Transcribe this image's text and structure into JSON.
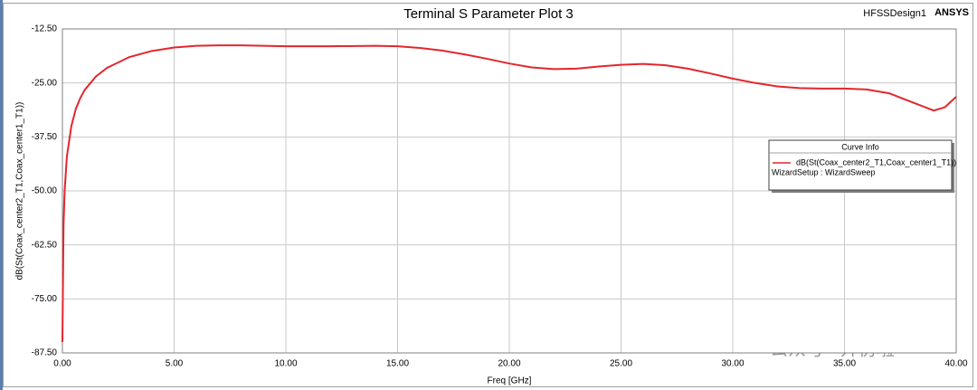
{
  "chart_data": {
    "type": "line",
    "title": "Terminal S Parameter Plot 3",
    "design": "HFSSDesign1",
    "brand": "ANSYS",
    "x_label": "Freq [GHz]",
    "y_label": "dB(St(Coax_center2_T1,Coax_center1_T1))",
    "x": [
      0,
      0.05,
      0.1,
      0.2,
      0.4,
      0.6,
      0.8,
      1,
      1.5,
      2,
      3,
      4,
      5,
      6,
      7,
      8,
      10,
      12,
      14,
      15,
      16,
      17,
      18,
      19,
      20,
      21,
      22,
      23,
      24,
      25,
      26,
      27,
      28,
      29,
      30,
      31,
      32,
      33,
      34,
      35,
      36,
      37,
      38,
      39,
      39.5,
      40
    ],
    "series": [
      {
        "name": "dB(St(Coax_center2_T1,Coax_center1_T1))",
        "color": "#e3262d",
        "values": [
          -85,
          -58,
          -50,
          -42,
          -35,
          -31,
          -28.5,
          -26.6,
          -23.5,
          -21.5,
          -19,
          -17.6,
          -16.8,
          -16.4,
          -16.3,
          -16.3,
          -16.5,
          -16.5,
          -16.4,
          -16.5,
          -16.9,
          -17.5,
          -18.4,
          -19.4,
          -20.5,
          -21.4,
          -21.8,
          -21.7,
          -21.2,
          -20.8,
          -20.6,
          -20.9,
          -21.7,
          -22.8,
          -24,
          -25,
          -25.8,
          -26.2,
          -26.3,
          -26.3,
          -26.5,
          -27.4,
          -29.4,
          -31.4,
          -30.6,
          -28.2
        ]
      }
    ],
    "legend_title": "Curve Info",
    "legend_note": "WizardSetup : WizardSweep",
    "legend_position": "right",
    "xlim": [
      0,
      40
    ],
    "ylim": [
      -87.5,
      -12.5
    ],
    "xticks": [
      {
        "value": 0,
        "label": "0.00"
      },
      {
        "value": 5,
        "label": "5.00"
      },
      {
        "value": 10,
        "label": "10.00"
      },
      {
        "value": 15,
        "label": "15.00"
      },
      {
        "value": 20,
        "label": "20.00"
      },
      {
        "value": 25,
        "label": "25.00"
      },
      {
        "value": 30,
        "label": "30.00"
      },
      {
        "value": 35,
        "label": "35.00"
      },
      {
        "value": 40,
        "label": "40.00"
      }
    ],
    "yticks": [
      {
        "value": -87.5,
        "label": "-87.50"
      },
      {
        "value": -75,
        "label": "-75.00"
      },
      {
        "value": -62.5,
        "label": "-62.50"
      },
      {
        "value": -50,
        "label": "-50.00"
      },
      {
        "value": -37.5,
        "label": "-37.50"
      },
      {
        "value": -25,
        "label": "-25.00"
      },
      {
        "value": -12.5,
        "label": "-12.50"
      }
    ],
    "grid": true,
    "watermark": "公众号 · 开仿啦"
  }
}
